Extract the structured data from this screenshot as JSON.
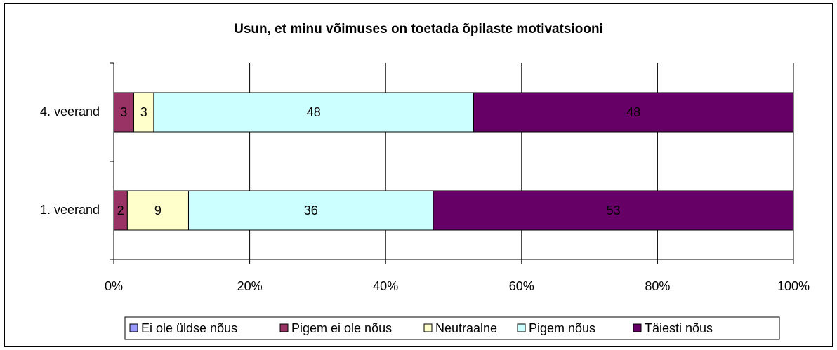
{
  "chart_data": {
    "type": "bar",
    "orientation": "horizontal",
    "stacking": "percent",
    "title": "Usun, et minu võimuses on toetada õpilaste motivatsiooni",
    "categories": [
      "1. veerand",
      "4. veerand"
    ],
    "series": [
      {
        "name": "Ei ole üldse nõus",
        "color": "#9999ff",
        "values": [
          0,
          0
        ]
      },
      {
        "name": "Pigem ei ole nõus",
        "color": "#993366",
        "values": [
          2,
          3
        ]
      },
      {
        "name": "Neutraalne",
        "color": "#ffffcc",
        "values": [
          9,
          3
        ]
      },
      {
        "name": "Pigem nõus",
        "color": "#ccffff",
        "values": [
          36,
          48
        ]
      },
      {
        "name": "Täiesti nõus",
        "color": "#660066",
        "values": [
          53,
          48
        ]
      }
    ],
    "xlim": [
      0,
      100
    ],
    "xticks": [
      {
        "value": 0,
        "label": "0%"
      },
      {
        "value": 20,
        "label": "20%"
      },
      {
        "value": 40,
        "label": "40%"
      },
      {
        "value": 60,
        "label": "60%"
      },
      {
        "value": 80,
        "label": "80%"
      },
      {
        "value": 100,
        "label": "100%"
      }
    ],
    "grid": true,
    "legend": "bottom"
  }
}
